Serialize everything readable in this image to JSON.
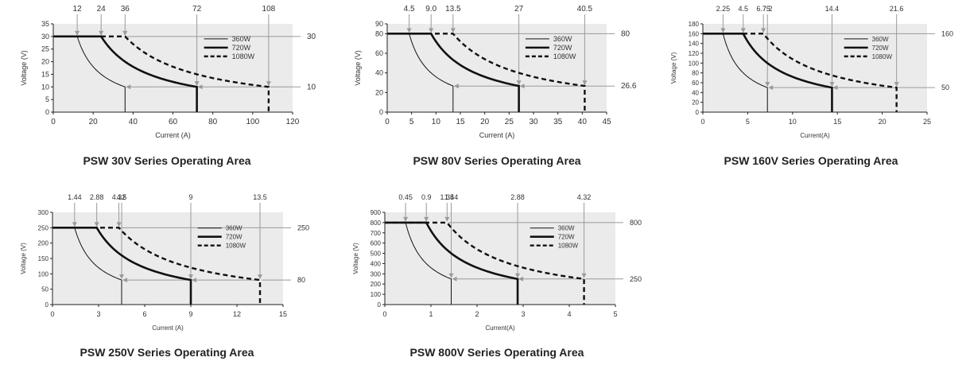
{
  "chart_data": [
    {
      "type": "line",
      "title": "PSW 30V Series Operating Area",
      "xlabel": "Current (A)",
      "ylabel": "Voltage (V)",
      "xlim": [
        0,
        120
      ],
      "ylim": [
        0,
        35
      ],
      "xticks": [
        0,
        20,
        40,
        60,
        80,
        100,
        120
      ],
      "yticks": [
        0,
        5,
        10,
        15,
        20,
        25,
        30,
        35
      ],
      "top_labels": [
        "12",
        "24",
        "36",
        "72",
        "108"
      ],
      "top_values": [
        12,
        24,
        36,
        72,
        108
      ],
      "right_labels": [
        "30",
        "10"
      ],
      "right_values": [
        30,
        10
      ],
      "v_max": 30,
      "v_min": 10,
      "series": [
        {
          "name": "360W",
          "power": 360,
          "i_corner": 12,
          "i_max": 36,
          "style": "thin"
        },
        {
          "name": "720W",
          "power": 720,
          "i_corner": 24,
          "i_max": 72,
          "style": "thick"
        },
        {
          "name": "1080W",
          "power": 1080,
          "i_corner": 36,
          "i_max": 108,
          "style": "dashed"
        }
      ]
    },
    {
      "type": "line",
      "title": "PSW 80V Series Operating Area",
      "xlabel": "Current (A)",
      "ylabel": "Voltage (V)",
      "xlim": [
        0,
        45
      ],
      "ylim": [
        0,
        90
      ],
      "xticks": [
        0,
        5,
        10,
        15,
        20,
        25,
        30,
        35,
        40,
        45
      ],
      "yticks": [
        0,
        20,
        40,
        60,
        80,
        90
      ],
      "top_labels": [
        "4.5",
        "9.0",
        "13.5",
        "27",
        "40.5"
      ],
      "top_values": [
        4.5,
        9.0,
        13.5,
        27,
        40.5
      ],
      "right_labels": [
        "80",
        "26.6"
      ],
      "right_values": [
        80,
        26.6
      ],
      "v_max": 80,
      "v_min": 26.6,
      "series": [
        {
          "name": "360W",
          "power": 360,
          "i_corner": 4.5,
          "i_max": 13.5,
          "style": "thin"
        },
        {
          "name": "720W",
          "power": 720,
          "i_corner": 9.0,
          "i_max": 27,
          "style": "thick"
        },
        {
          "name": "1080W",
          "power": 1080,
          "i_corner": 13.5,
          "i_max": 40.5,
          "style": "dashed"
        }
      ]
    },
    {
      "type": "line",
      "title": "PSW 160V Series Operating Area",
      "xlabel": "Current(A)",
      "ylabel": "Voltage (V)",
      "xlim": [
        0,
        25
      ],
      "ylim": [
        0,
        180
      ],
      "xticks": [
        0,
        5,
        10,
        15,
        20,
        25
      ],
      "yticks": [
        0,
        20,
        40,
        60,
        80,
        100,
        120,
        140,
        160,
        180
      ],
      "top_labels": [
        "2.25",
        "4.5",
        "6.75",
        "7.2",
        "14.4",
        "21.6"
      ],
      "top_values": [
        2.25,
        4.5,
        6.75,
        7.2,
        14.4,
        21.6
      ],
      "right_labels": [
        "160",
        "50"
      ],
      "right_values": [
        160,
        50
      ],
      "v_max": 160,
      "v_min": 50,
      "series": [
        {
          "name": "360W",
          "power": 360,
          "i_corner": 2.25,
          "i_max": 7.2,
          "style": "thin"
        },
        {
          "name": "720W",
          "power": 720,
          "i_corner": 4.5,
          "i_max": 14.4,
          "style": "thick"
        },
        {
          "name": "1080W",
          "power": 1080,
          "i_corner": 6.75,
          "i_max": 21.6,
          "style": "dashed"
        }
      ]
    },
    {
      "type": "line",
      "title": "PSW 250V Series Operating Area",
      "xlabel": "Current (A)",
      "ylabel": "Voltage (V)",
      "xlim": [
        0,
        15
      ],
      "ylim": [
        0,
        300
      ],
      "xticks": [
        0,
        3,
        6,
        9,
        12,
        15
      ],
      "yticks": [
        0,
        50,
        100,
        150,
        200,
        250,
        300
      ],
      "top_labels": [
        "1.44",
        "2.88",
        "4.32",
        "4.5",
        "9",
        "13.5"
      ],
      "top_values": [
        1.44,
        2.88,
        4.32,
        4.5,
        9,
        13.5
      ],
      "right_labels": [
        "250",
        "80"
      ],
      "right_values": [
        250,
        80
      ],
      "v_max": 250,
      "v_min": 80,
      "series": [
        {
          "name": "360W",
          "power": 360,
          "i_corner": 1.44,
          "i_max": 4.5,
          "style": "thin"
        },
        {
          "name": "720W",
          "power": 720,
          "i_corner": 2.88,
          "i_max": 9,
          "style": "thick"
        },
        {
          "name": "1080W",
          "power": 1080,
          "i_corner": 4.32,
          "i_max": 13.5,
          "style": "dashed"
        }
      ]
    },
    {
      "type": "line",
      "title": "PSW 800V Series Operating Area",
      "xlabel": "Current(A)",
      "ylabel": "Voltage (V)",
      "xlim": [
        0,
        5
      ],
      "ylim": [
        0,
        900
      ],
      "xticks": [
        0,
        1,
        2,
        3,
        4,
        5
      ],
      "yticks": [
        0,
        100,
        200,
        300,
        400,
        500,
        600,
        700,
        800,
        900
      ],
      "top_labels": [
        "0.45",
        "0.9",
        "1.35",
        "1.44",
        "2.88",
        "4.32"
      ],
      "top_values": [
        0.45,
        0.9,
        1.35,
        1.44,
        2.88,
        4.32
      ],
      "right_labels": [
        "800",
        "250"
      ],
      "right_values": [
        800,
        250
      ],
      "v_max": 800,
      "v_min": 250,
      "series": [
        {
          "name": "360W",
          "power": 360,
          "i_corner": 0.45,
          "i_max": 1.44,
          "style": "thin"
        },
        {
          "name": "720W",
          "power": 720,
          "i_corner": 0.9,
          "i_max": 2.88,
          "style": "thick"
        },
        {
          "name": "1080W",
          "power": 1080,
          "i_corner": 1.35,
          "i_max": 4.32,
          "style": "dashed"
        }
      ]
    }
  ]
}
